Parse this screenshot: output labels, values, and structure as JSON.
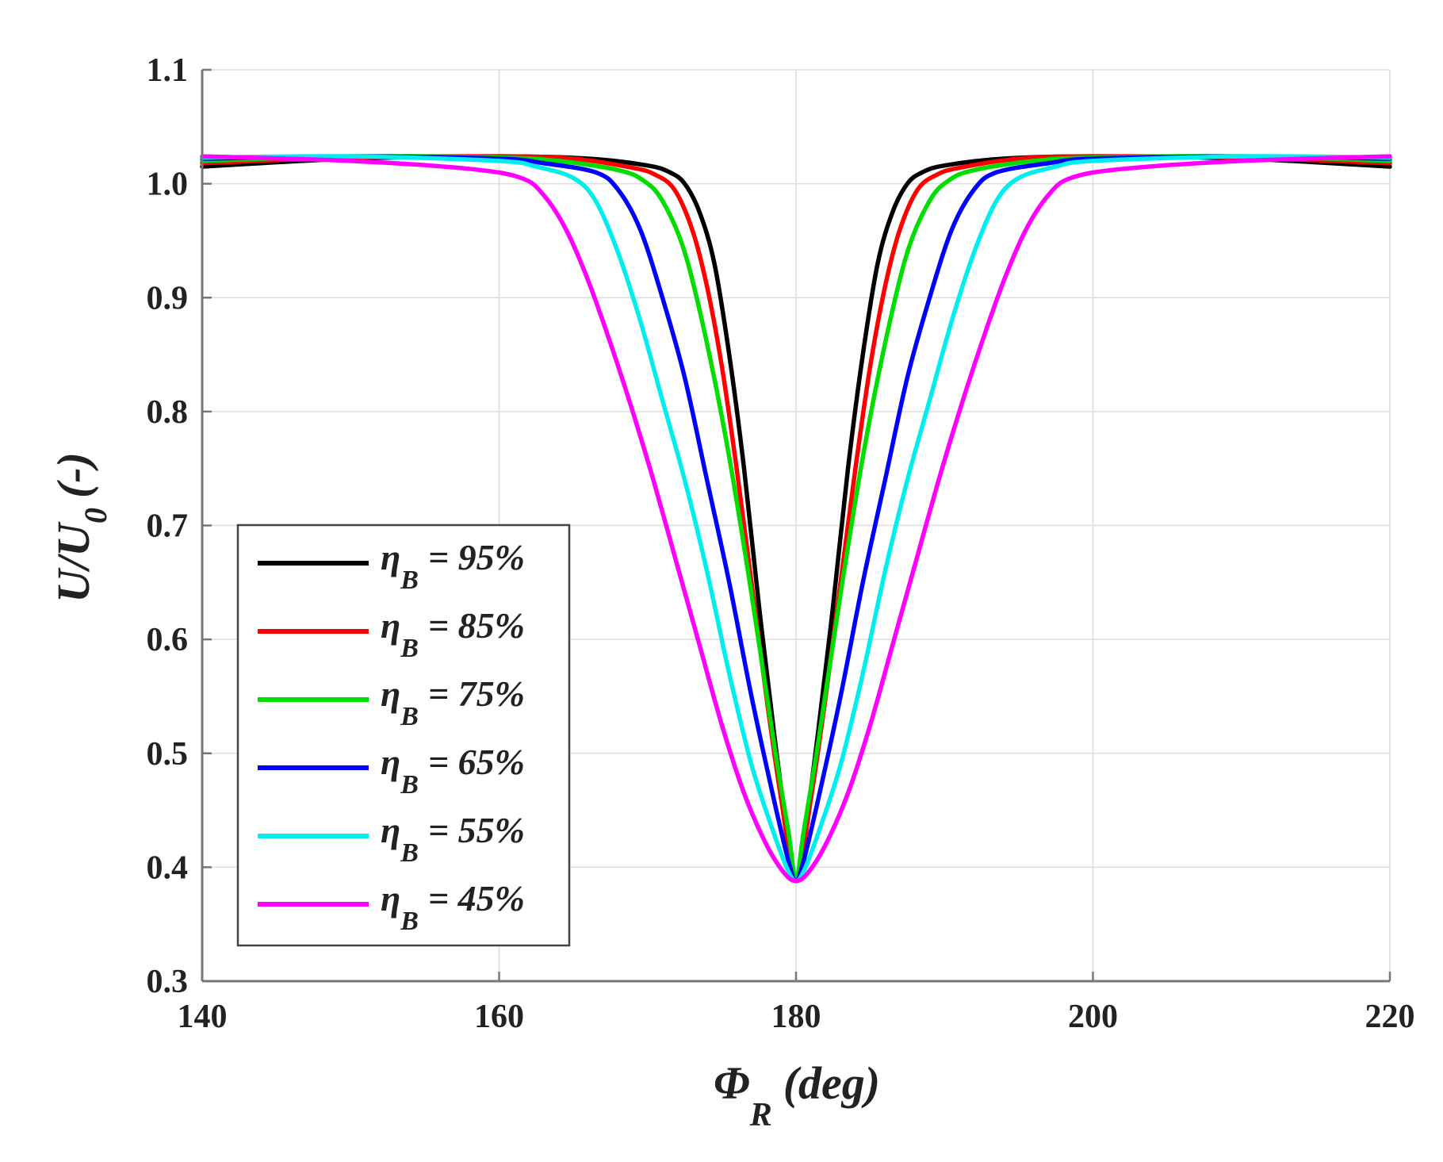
{
  "chart_data": {
    "type": "line",
    "xlabel": "Φ_R (deg)",
    "xlabel_parts": {
      "symbol": "Φ",
      "subscript": "R",
      "unit": "(deg)"
    },
    "ylabel": "U/U_0 (-)",
    "ylabel_parts": {
      "main": "U/U",
      "subscript": "0",
      "unit": "(-)"
    },
    "xlim": [
      140,
      220
    ],
    "ylim": [
      0.3,
      1.1
    ],
    "xticks": [
      140,
      160,
      180,
      200,
      220
    ],
    "xtick_labels": [
      "140",
      "160",
      "180",
      "200",
      "220"
    ],
    "yticks": [
      0.3,
      0.4,
      0.5,
      0.6,
      0.7,
      0.8,
      0.9,
      1.0,
      1.1
    ],
    "ytick_labels": [
      "0.3",
      "0.4",
      "0.5",
      "0.6",
      "0.7",
      "0.8",
      "0.9",
      "1.0",
      "1.1"
    ],
    "grid": true,
    "legend_position": "lower-left",
    "series": [
      {
        "name": "η_B = 95%",
        "symbol": "η",
        "subscript": "B",
        "value_text": "= 95%",
        "color": "#000000",
        "x": [
          140,
          150,
          160,
          166,
          170,
          171.5,
          172.5,
          173.5,
          174.5,
          175.5,
          176.5,
          177.5,
          178.5,
          179.3,
          180
        ],
        "y": [
          1.015,
          1.022,
          1.024,
          1.022,
          1.016,
          1.01,
          1.0,
          0.975,
          0.93,
          0.85,
          0.75,
          0.63,
          0.52,
          0.44,
          0.388
        ]
      },
      {
        "name": "η_B = 85%",
        "symbol": "η",
        "subscript": "B",
        "value_text": "= 85%",
        "color": "#ff0000",
        "x": [
          140,
          150,
          160,
          165,
          169,
          170.5,
          171.8,
          173,
          174,
          175,
          176,
          177,
          178,
          179,
          180
        ],
        "y": [
          1.018,
          1.023,
          1.024,
          1.022,
          1.014,
          1.008,
          0.995,
          0.96,
          0.91,
          0.84,
          0.75,
          0.65,
          0.55,
          0.46,
          0.388
        ]
      },
      {
        "name": "η_B = 75%",
        "symbol": "η",
        "subscript": "B",
        "value_text": "= 75%",
        "color": "#00dd00",
        "x": [
          140,
          150,
          160,
          164,
          168,
          169.7,
          171,
          172.5,
          174,
          175.5,
          177,
          178.5,
          179.5,
          180
        ],
        "y": [
          1.02,
          1.024,
          1.023,
          1.02,
          1.012,
          1.003,
          0.985,
          0.94,
          0.86,
          0.76,
          0.64,
          0.51,
          0.43,
          0.388
        ]
      },
      {
        "name": "η_B = 65%",
        "symbol": "η",
        "subscript": "B",
        "value_text": "= 65%",
        "color": "#0000ff",
        "x": [
          140,
          150,
          160,
          163,
          166.5,
          168,
          169.5,
          171,
          172.5,
          174,
          175.5,
          177,
          178.5,
          179.5,
          180
        ],
        "y": [
          1.022,
          1.024,
          1.022,
          1.018,
          1.01,
          0.995,
          0.96,
          0.9,
          0.83,
          0.74,
          0.65,
          0.55,
          0.46,
          0.405,
          0.388
        ]
      },
      {
        "name": "η_B = 55%",
        "symbol": "η",
        "subscript": "B",
        "value_text": "= 55%",
        "color": "#00eeee",
        "x": [
          140,
          150,
          160,
          162.5,
          165,
          166.5,
          168,
          169.5,
          171,
          172.5,
          174,
          175.5,
          177,
          178.5,
          179.5,
          180
        ],
        "y": [
          1.023,
          1.024,
          1.02,
          1.015,
          1.005,
          0.985,
          0.94,
          0.88,
          0.81,
          0.74,
          0.66,
          0.57,
          0.49,
          0.43,
          0.396,
          0.388
        ]
      },
      {
        "name": "η_B = 45%",
        "symbol": "η",
        "subscript": "B",
        "value_text": "= 45%",
        "color": "#ff00ff",
        "x": [
          140,
          150,
          158,
          161.5,
          163,
          164.5,
          166,
          167.5,
          169,
          170.5,
          172,
          173.5,
          175,
          176.5,
          178,
          179.2,
          180
        ],
        "y": [
          1.024,
          1.02,
          1.013,
          1.005,
          0.99,
          0.96,
          0.915,
          0.86,
          0.8,
          0.735,
          0.665,
          0.595,
          0.525,
          0.465,
          0.42,
          0.395,
          0.388
        ]
      }
    ]
  }
}
